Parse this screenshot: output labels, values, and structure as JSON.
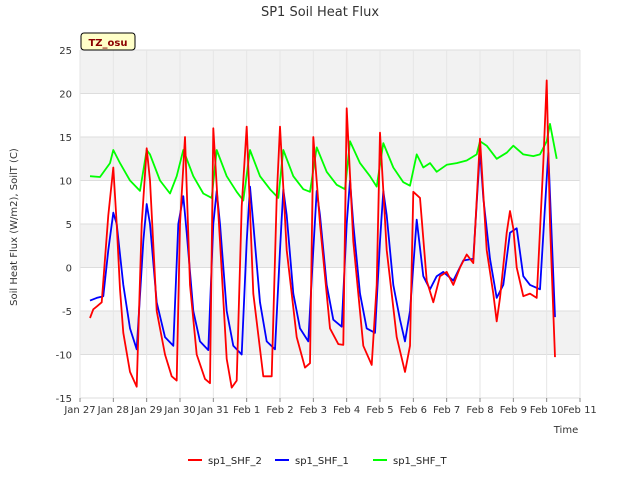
{
  "chart_data": {
    "type": "line",
    "title": "SP1 Soil Heat Flux",
    "xlabel": "Time",
    "ylabel": "Soil Heat Flux (W/m2), SoilT (C)",
    "x_tick_labels": [
      "Jan 27",
      "Jan 28",
      "Jan 29",
      "Jan 30",
      "Jan 31",
      "Feb 1",
      "Feb 2",
      "Feb 3",
      "Feb 4",
      "Feb 5",
      "Feb 6",
      "Feb 7",
      "Feb 8",
      "Feb 9",
      "Feb 10",
      "Feb 11"
    ],
    "xlim": [
      0,
      15
    ],
    "ylim": [
      -15,
      25
    ],
    "y_ticks": [
      -15,
      -10,
      -5,
      0,
      5,
      10,
      15,
      20,
      25
    ],
    "grid": true,
    "legend_position": "bottom-center",
    "annotation": "TZ_osu",
    "series": [
      {
        "name": "sp1_SHF_2",
        "color": "#ff0000",
        "x": [
          0.3,
          0.4,
          0.5,
          0.65,
          0.85,
          1.0,
          1.1,
          1.2,
          1.3,
          1.5,
          1.7,
          1.85,
          2.0,
          2.1,
          2.3,
          2.55,
          2.75,
          2.9,
          3.0,
          3.15,
          3.3,
          3.5,
          3.75,
          3.9,
          4.0,
          4.2,
          4.4,
          4.55,
          4.7,
          4.85,
          5.0,
          5.2,
          5.5,
          5.75,
          5.9,
          6.0,
          6.2,
          6.5,
          6.75,
          6.9,
          7.0,
          7.2,
          7.5,
          7.75,
          7.9,
          8.0,
          8.2,
          8.5,
          8.75,
          8.9,
          9.0,
          9.2,
          9.5,
          9.75,
          9.9,
          10.0,
          10.2,
          10.4,
          10.6,
          10.8,
          11.0,
          11.2,
          11.4,
          11.6,
          11.8,
          12.0,
          12.2,
          12.4,
          12.5,
          12.6,
          12.8,
          12.9,
          13.0,
          13.1,
          13.3,
          13.5,
          13.7,
          13.9,
          14.0,
          14.1,
          14.25
        ],
        "values": [
          -5.8,
          -4.8,
          -4.5,
          -4.0,
          6.0,
          11.5,
          5.0,
          -2.5,
          -7.5,
          -12.0,
          -13.7,
          5.0,
          13.7,
          10.0,
          -5.0,
          -10.0,
          -12.5,
          -13.0,
          5.0,
          15.0,
          -2.0,
          -10.0,
          -12.8,
          -13.3,
          16.0,
          3.0,
          -10.5,
          -13.8,
          -13.0,
          7.0,
          16.2,
          -3.0,
          -12.5,
          -12.5,
          8.0,
          16.2,
          2.0,
          -8.0,
          -11.5,
          -11.0,
          15.0,
          5.0,
          -7.0,
          -8.8,
          -8.9,
          18.3,
          3.0,
          -9.0,
          -11.2,
          -2.0,
          15.5,
          2.0,
          -8.0,
          -12.0,
          -9.0,
          8.7,
          8.0,
          -1.5,
          -4.0,
          -1.0,
          -0.5,
          -2.0,
          0.0,
          1.5,
          0.5,
          14.8,
          2.0,
          -3.0,
          -6.2,
          -3.5,
          4.0,
          6.5,
          4.5,
          0.0,
          -3.3,
          -3.0,
          -3.5,
          12.0,
          21.5,
          5.0,
          -10.3
        ]
      },
      {
        "name": "sp1_SHF_1",
        "color": "#0000ff",
        "x": [
          0.3,
          0.5,
          0.7,
          0.85,
          1.0,
          1.1,
          1.3,
          1.5,
          1.7,
          1.9,
          2.0,
          2.1,
          2.3,
          2.55,
          2.8,
          2.95,
          3.1,
          3.2,
          3.4,
          3.6,
          3.85,
          4.0,
          4.1,
          4.2,
          4.4,
          4.6,
          4.85,
          5.0,
          5.1,
          5.2,
          5.4,
          5.6,
          5.85,
          6.0,
          6.1,
          6.2,
          6.4,
          6.6,
          6.85,
          7.0,
          7.1,
          7.2,
          7.4,
          7.6,
          7.85,
          8.0,
          8.1,
          8.2,
          8.4,
          8.6,
          8.85,
          9.0,
          9.1,
          9.2,
          9.4,
          9.6,
          9.75,
          9.9,
          10.1,
          10.3,
          10.5,
          10.7,
          10.9,
          11.2,
          11.5,
          11.8,
          12.0,
          12.1,
          12.3,
          12.5,
          12.7,
          12.9,
          13.1,
          13.3,
          13.5,
          13.8,
          13.95,
          14.05,
          14.25
        ],
        "values": [
          -3.8,
          -3.5,
          -3.3,
          2.0,
          6.3,
          5.0,
          -2.0,
          -7.0,
          -9.4,
          3.0,
          7.3,
          5.0,
          -4.0,
          -8.0,
          -9.0,
          5.0,
          8.2,
          4.0,
          -5.0,
          -8.5,
          -9.5,
          5.0,
          8.8,
          5.0,
          -5.0,
          -9.0,
          -10.0,
          3.0,
          9.3,
          5.0,
          -4.0,
          -8.5,
          -9.4,
          2.0,
          9.0,
          6.0,
          -3.0,
          -7.0,
          -8.5,
          2.0,
          8.8,
          6.0,
          -2.0,
          -6.0,
          -6.8,
          5.0,
          10.0,
          5.0,
          -3.0,
          -7.0,
          -7.5,
          3.0,
          8.8,
          6.0,
          -2.0,
          -6.0,
          -8.5,
          -5.0,
          5.5,
          -1.0,
          -2.5,
          -1.0,
          -0.5,
          -1.5,
          0.8,
          1.0,
          13.5,
          8.0,
          1.0,
          -3.5,
          -2.0,
          4.0,
          4.5,
          -1.0,
          -2.0,
          -2.5,
          7.0,
          13.2,
          -5.7
        ]
      },
      {
        "name": "sp1_SHF_T",
        "color": "#00ff00",
        "x": [
          0.3,
          0.6,
          0.9,
          1.0,
          1.2,
          1.5,
          1.8,
          2.0,
          2.1,
          2.4,
          2.7,
          2.9,
          3.1,
          3.4,
          3.7,
          3.95,
          4.1,
          4.4,
          4.7,
          4.9,
          5.1,
          5.4,
          5.7,
          5.95,
          6.1,
          6.4,
          6.7,
          6.9,
          7.1,
          7.4,
          7.7,
          7.95,
          8.1,
          8.4,
          8.7,
          8.9,
          9.1,
          9.4,
          9.7,
          9.9,
          10.1,
          10.3,
          10.5,
          10.7,
          11.0,
          11.3,
          11.6,
          11.9,
          12.0,
          12.2,
          12.5,
          12.8,
          13.0,
          13.3,
          13.6,
          13.8,
          14.0,
          14.1,
          14.3
        ],
        "values": [
          10.5,
          10.4,
          12.0,
          13.5,
          12.0,
          10.0,
          8.8,
          13.5,
          13.0,
          10.0,
          8.5,
          10.5,
          13.5,
          10.5,
          8.5,
          8.0,
          13.5,
          10.5,
          8.7,
          7.7,
          13.5,
          10.5,
          9.0,
          8.0,
          13.5,
          10.5,
          9.0,
          8.7,
          13.8,
          11.0,
          9.5,
          9.0,
          14.5,
          12.0,
          10.5,
          9.3,
          14.3,
          11.5,
          9.8,
          9.4,
          13.0,
          11.5,
          12.0,
          11.0,
          11.8,
          12.0,
          12.3,
          13.0,
          14.5,
          14.0,
          12.5,
          13.2,
          14.0,
          13.0,
          12.8,
          13.0,
          14.5,
          16.5,
          12.5
        ]
      }
    ]
  }
}
